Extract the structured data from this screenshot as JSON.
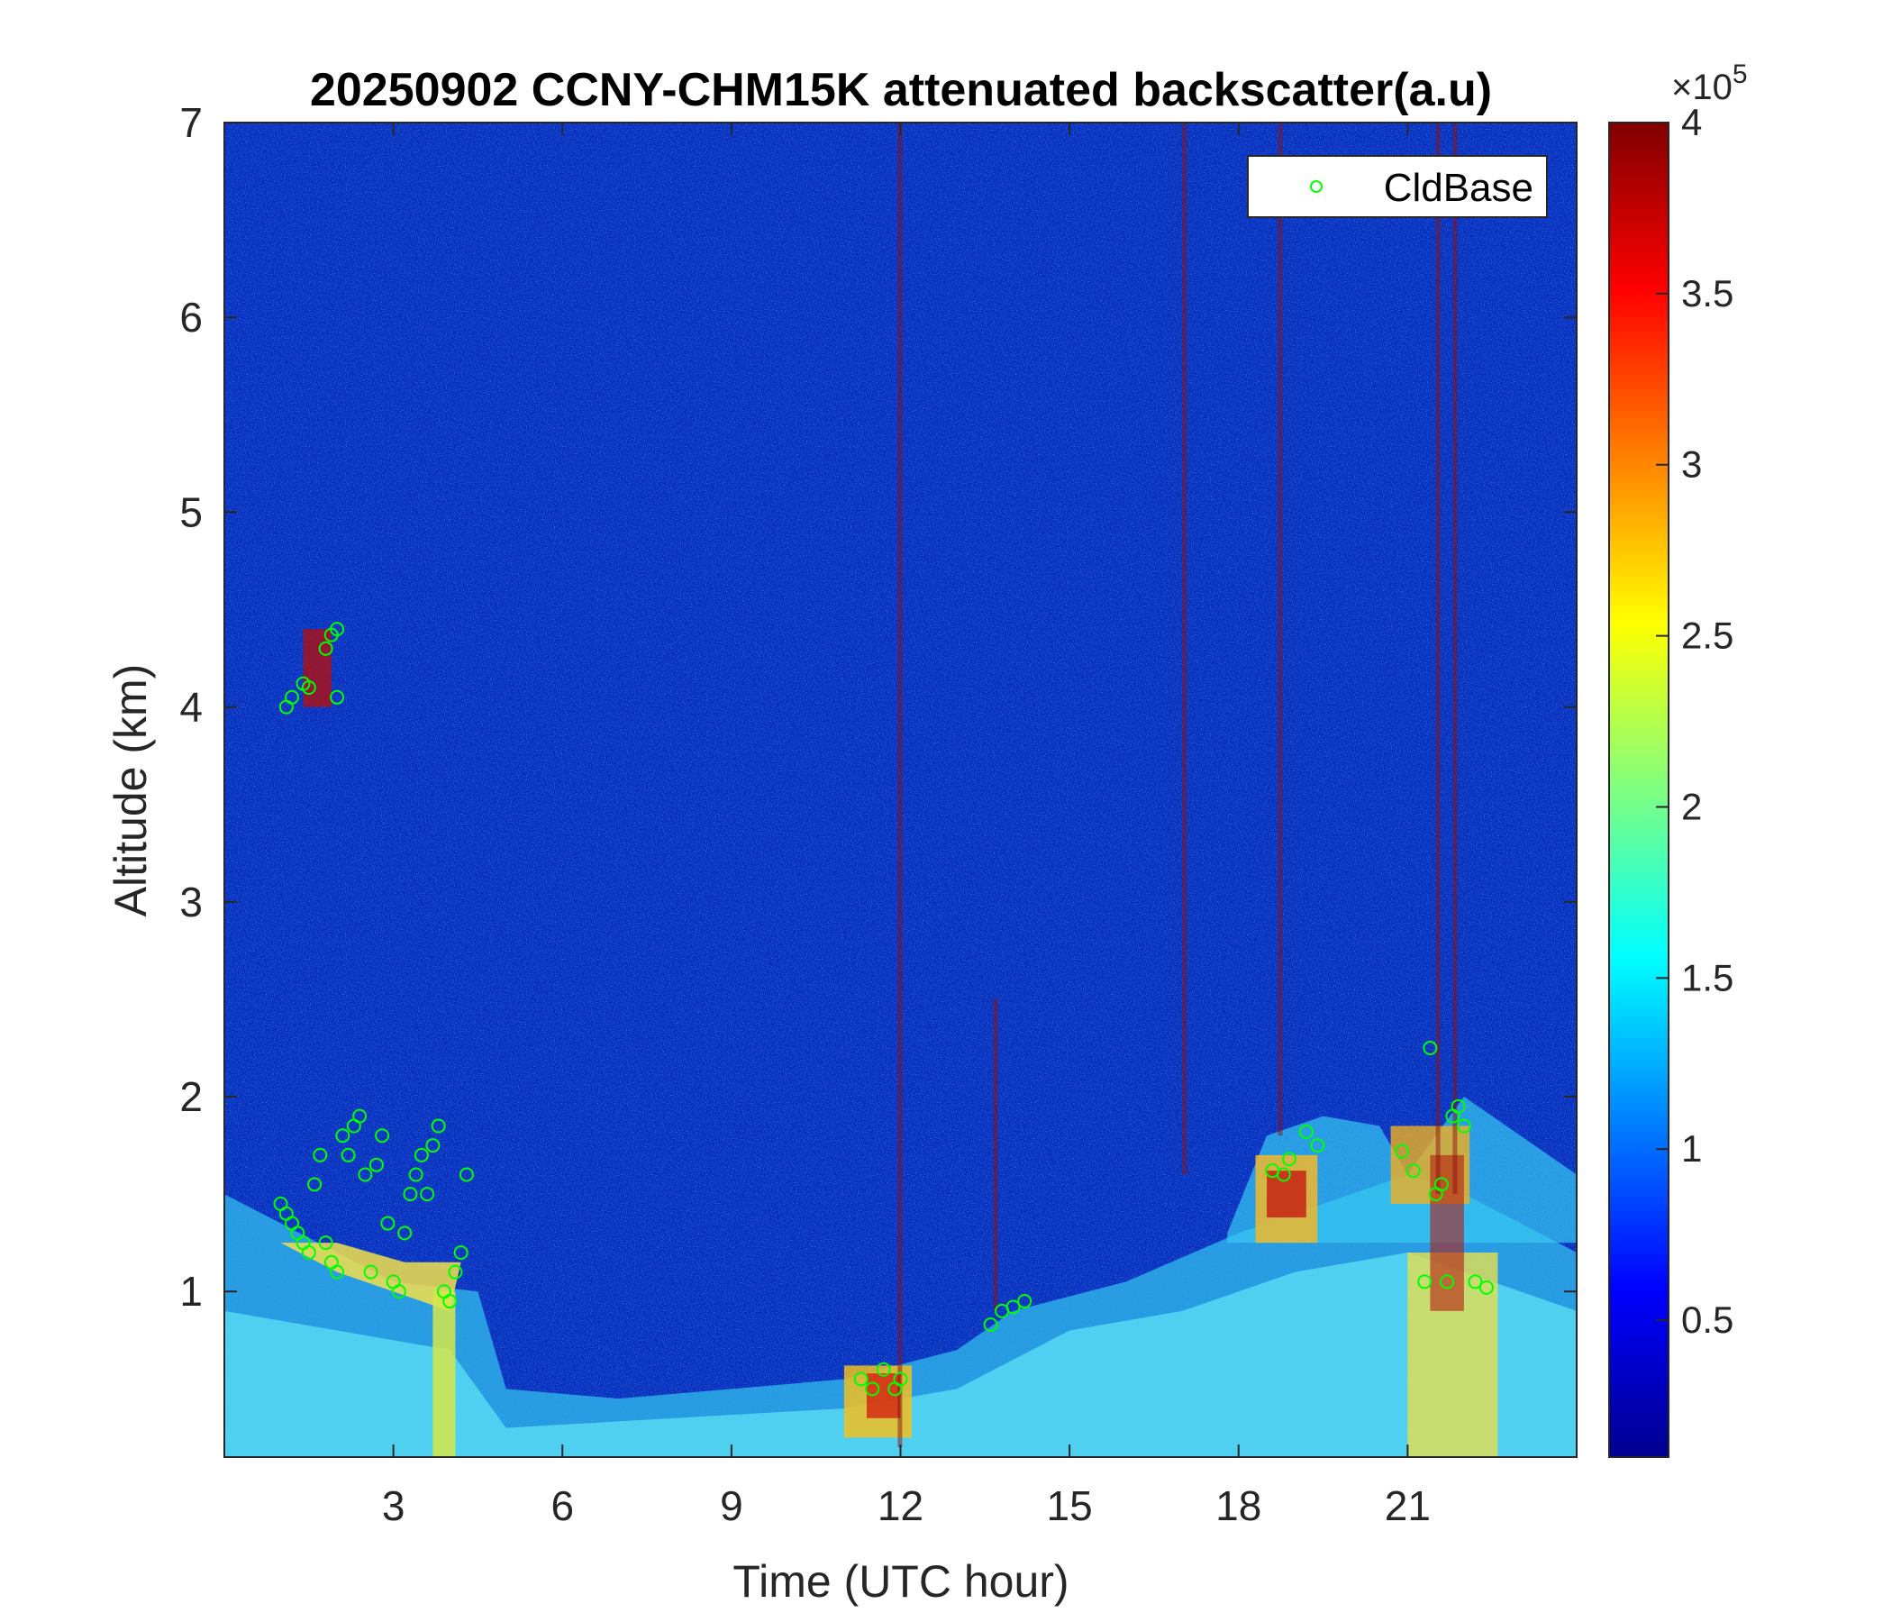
{
  "chart_data": {
    "type": "heatmap",
    "title": "20250902 CCNY-CHM15K attenuated backscatter(a.u)",
    "xlabel": "Time (UTC hour)",
    "ylabel": "Altitude (km)",
    "xlim": [
      0,
      24
    ],
    "ylim": [
      0.15,
      7
    ],
    "xticks": [
      3,
      6,
      9,
      12,
      15,
      18,
      21
    ],
    "yticks": [
      1,
      2,
      3,
      4,
      5,
      6,
      7
    ],
    "colorbar": {
      "colormap": "jet",
      "range": [
        0.1,
        4
      ],
      "ticks": [
        0.5,
        1,
        1.5,
        2,
        2.5,
        3,
        3.5,
        4
      ],
      "multiplier": "×10",
      "exponent": "5"
    },
    "legend": {
      "position": "top-right",
      "entries": [
        "CldBase"
      ]
    },
    "series": [
      {
        "name": "CldBase",
        "marker": "circle",
        "color": "#00ff00",
        "points": [
          [
            1.0,
            1.45
          ],
          [
            1.1,
            1.4
          ],
          [
            1.2,
            1.35
          ],
          [
            1.3,
            1.3
          ],
          [
            1.4,
            1.25
          ],
          [
            1.5,
            1.2
          ],
          [
            1.6,
            1.55
          ],
          [
            1.7,
            1.7
          ],
          [
            1.8,
            1.25
          ],
          [
            1.9,
            1.15
          ],
          [
            2.0,
            1.1
          ],
          [
            2.1,
            1.8
          ],
          [
            2.2,
            1.7
          ],
          [
            2.3,
            1.85
          ],
          [
            2.4,
            1.9
          ],
          [
            2.5,
            1.6
          ],
          [
            2.6,
            1.1
          ],
          [
            2.7,
            1.65
          ],
          [
            2.8,
            1.8
          ],
          [
            2.9,
            1.35
          ],
          [
            3.0,
            1.05
          ],
          [
            3.1,
            1.0
          ],
          [
            3.2,
            1.3
          ],
          [
            3.3,
            1.5
          ],
          [
            3.4,
            1.6
          ],
          [
            3.5,
            1.7
          ],
          [
            3.6,
            1.5
          ],
          [
            3.7,
            1.75
          ],
          [
            3.8,
            1.85
          ],
          [
            3.9,
            1.0
          ],
          [
            4.0,
            0.95
          ],
          [
            4.1,
            1.1
          ],
          [
            4.2,
            1.2
          ],
          [
            4.3,
            1.6
          ],
          [
            1.1,
            4.0
          ],
          [
            1.2,
            4.05
          ],
          [
            1.4,
            4.12
          ],
          [
            1.5,
            4.1
          ],
          [
            1.8,
            4.3
          ],
          [
            1.9,
            4.37
          ],
          [
            2.0,
            4.4
          ],
          [
            2.0,
            4.05
          ],
          [
            11.3,
            0.55
          ],
          [
            11.5,
            0.5
          ],
          [
            11.7,
            0.6
          ],
          [
            11.9,
            0.5
          ],
          [
            12.0,
            0.55
          ],
          [
            13.6,
            0.83
          ],
          [
            13.8,
            0.9
          ],
          [
            14.0,
            0.92
          ],
          [
            14.2,
            0.95
          ],
          [
            18.6,
            1.62
          ],
          [
            18.8,
            1.6
          ],
          [
            18.9,
            1.68
          ],
          [
            19.2,
            1.82
          ],
          [
            19.4,
            1.75
          ],
          [
            20.9,
            1.72
          ],
          [
            21.1,
            1.62
          ],
          [
            21.3,
            1.05
          ],
          [
            21.4,
            2.25
          ],
          [
            21.5,
            1.5
          ],
          [
            21.6,
            1.55
          ],
          [
            21.7,
            1.05
          ],
          [
            21.8,
            1.9
          ],
          [
            21.9,
            1.95
          ],
          [
            22.0,
            1.85
          ],
          [
            22.2,
            1.05
          ],
          [
            22.4,
            1.02
          ]
        ]
      }
    ]
  }
}
